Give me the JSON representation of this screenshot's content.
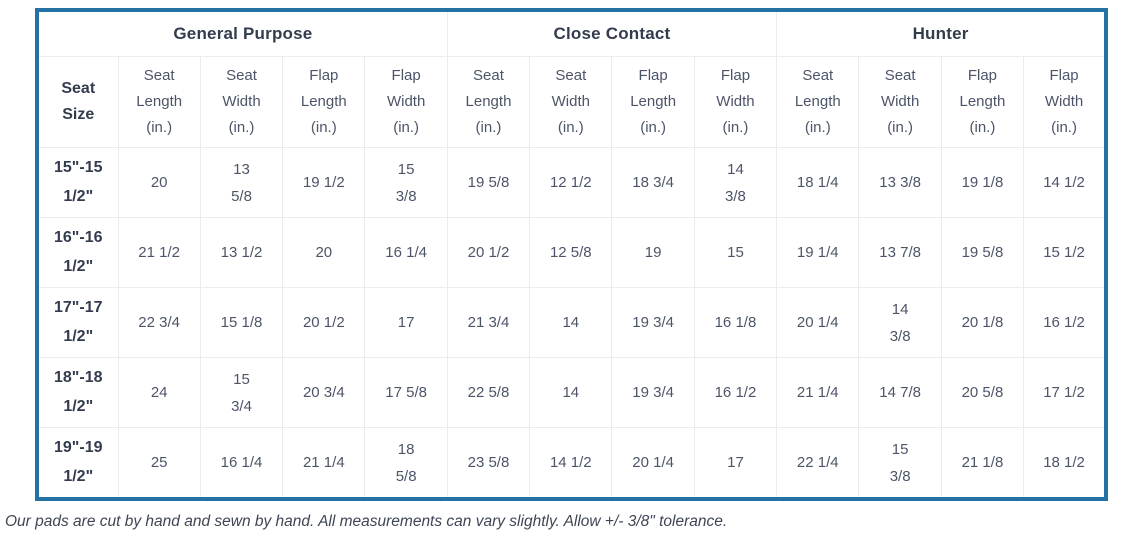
{
  "table": {
    "groups": [
      {
        "label": "General Purpose",
        "span": 5
      },
      {
        "label": "Close Contact",
        "span": 4
      },
      {
        "label": "Hunter",
        "span": 4
      }
    ],
    "seat_size_header": "Seat\nSize",
    "column_headers": [
      "Seat\nLength\n(in.)",
      "Seat\nWidth\n(in.)",
      "Flap\nLength\n(in.)",
      "Flap\nWidth\n(in.)",
      "Seat\nLength\n(in.)",
      "Seat\nWidth\n(in.)",
      "Flap\nLength\n(in.)",
      "Flap\nWidth\n(in.)",
      "Seat\nLength\n(in.)",
      "Seat\nWidth\n(in.)",
      "Flap\nLength\n(in.)",
      "Flap\nWidth\n(in.)"
    ],
    "rows": [
      {
        "seat_size": "15\"-15\n1/2\"",
        "values": [
          "20",
          "13\n5/8",
          "19 1/2",
          "15\n3/8",
          "19 5/8",
          "12 1/2",
          "18 3/4",
          "14\n3/8",
          "18 1/4",
          "13 3/8",
          "19 1/8",
          "14 1/2"
        ]
      },
      {
        "seat_size": "16\"-16\n1/2\"",
        "values": [
          "21 1/2",
          "13 1/2",
          "20",
          "16 1/4",
          "20 1/2",
          "12 5/8",
          "19",
          "15",
          "19 1/4",
          "13 7/8",
          "19 5/8",
          "15 1/2"
        ]
      },
      {
        "seat_size": "17\"-17\n1/2\"",
        "values": [
          "22 3/4",
          "15 1/8",
          "20 1/2",
          "17",
          "21 3/4",
          "14",
          "19 3/4",
          "16 1/8",
          "20 1/4",
          "14\n3/8",
          "20 1/8",
          "16 1/2"
        ]
      },
      {
        "seat_size": "18\"-18\n1/2\"",
        "values": [
          "24",
          "15\n3/4",
          "20 3/4",
          "17 5/8",
          "22 5/8",
          "14",
          "19 3/4",
          "16 1/2",
          "21 1/4",
          "14 7/8",
          "20 5/8",
          "17 1/2"
        ]
      },
      {
        "seat_size": "19\"-19\n1/2\"",
        "values": [
          "25",
          "16 1/4",
          "21 1/4",
          "18\n5/8",
          "23 5/8",
          "14 1/2",
          "20 1/4",
          "17",
          "22 1/4",
          "15\n3/8",
          "21 1/8",
          "18 1/2"
        ]
      }
    ]
  },
  "footer": {
    "note": "Our pads are cut by hand and sewn by hand. All measurements can vary slightly. Allow +/- 3/8\" tolerance."
  },
  "colors": {
    "border_accent": "#2471a3",
    "grid_line": "#ececec",
    "header_text": "#333c4e",
    "body_text": "#4c5568"
  }
}
